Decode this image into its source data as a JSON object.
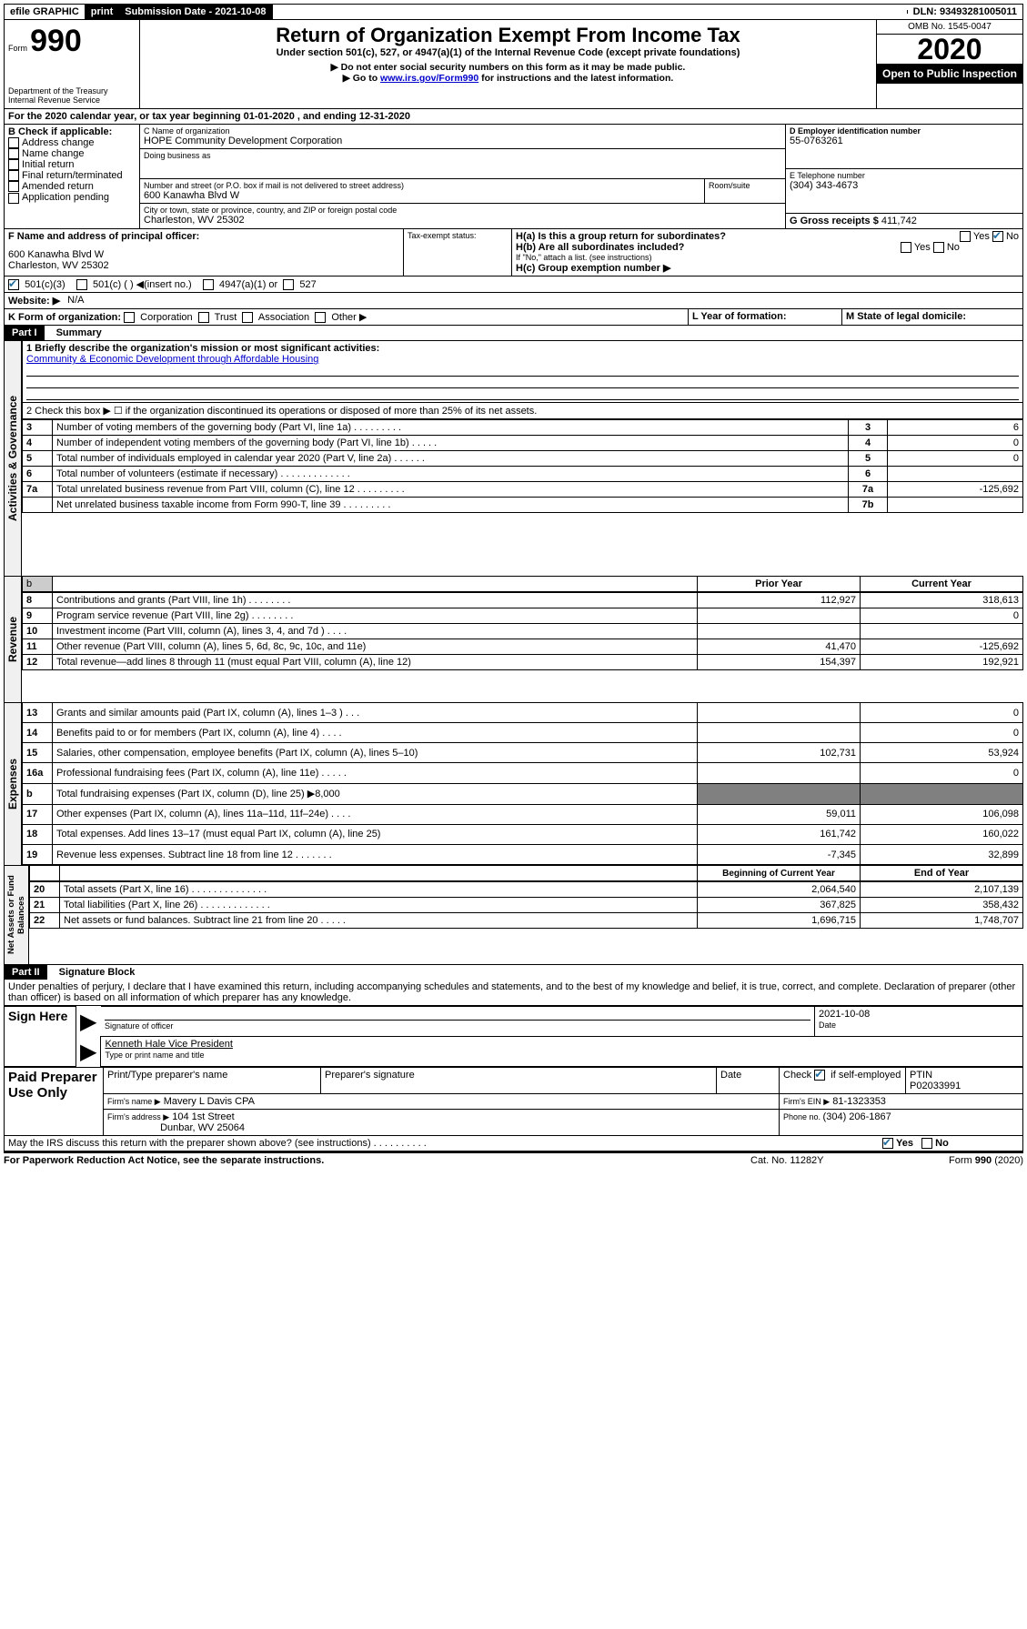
{
  "top_bar": {
    "efile": "efile GRAPHIC",
    "print": "print",
    "sub_date_label": "Submission Date - 2021-10-08",
    "dln": "DLN: 93493281005011"
  },
  "header": {
    "form_word": "Form",
    "form_num": "990",
    "title": "Return of Organization Exempt From Income Tax",
    "subtitle": "Under section 501(c), 527, or 4947(a)(1) of the Internal Revenue Code (except private foundations)",
    "note1": "▶ Do not enter social security numbers on this form as it may be made public.",
    "note2_pre": "▶ Go to ",
    "note2_link": "www.irs.gov/Form990",
    "note2_post": " for instructions and the latest information.",
    "dept1": "Department of the Treasury",
    "dept2": "Internal Revenue Service",
    "omb": "OMB No. 1545-0047",
    "year": "2020",
    "open": "Open to Public Inspection"
  },
  "line_a": "For the 2020 calendar year, or tax year beginning 01-01-2020    , and ending 12-31-2020",
  "box_b": {
    "label": "B Check if applicable:",
    "opts": [
      "Address change",
      "Name change",
      "Initial return",
      "Final return/terminated",
      "Amended return",
      "Application pending"
    ]
  },
  "box_c": {
    "label": "C Name of organization",
    "name": "HOPE Community Development Corporation",
    "dba_label": "Doing business as",
    "addr_label": "Number and street (or P.O. box if mail is not delivered to street address)",
    "room": "Room/suite",
    "addr": "600 Kanawha Blvd W",
    "city_label": "City or town, state or province, country, and ZIP or foreign postal code",
    "city": "Charleston, WV  25302"
  },
  "box_d": {
    "label": "D Employer identification number",
    "ein": "55-0763261"
  },
  "box_e": {
    "label": "E Telephone number",
    "phone": "(304) 343-4673"
  },
  "box_g": {
    "label": "G Gross receipts $ ",
    "val": "411,742"
  },
  "box_f": {
    "label": "F Name and address of principal officer:",
    "addr1": "600 Kanawha Blvd W",
    "addr2": "Charleston, WV  25302"
  },
  "box_h": {
    "a": "H(a)  Is this a group return for subordinates?",
    "b": "H(b)  Are all subordinates included?",
    "note": "If \"No,\" attach a list. (see instructions)",
    "c": "H(c)  Group exemption number ▶"
  },
  "tax_status": {
    "label": "Tax-exempt status:",
    "o1": "501(c)(3)",
    "o2": "501(c) (   ) ◀(insert no.)",
    "o3": "4947(a)(1) or",
    "o4": "527"
  },
  "line_j": {
    "label": "Website: ▶",
    "val": "N/A"
  },
  "line_k": "K Form of organization:",
  "k_opts": [
    "Corporation",
    "Trust",
    "Association",
    "Other ▶"
  ],
  "line_l": "L Year of formation:",
  "line_m": "M State of legal domicile:",
  "part1": {
    "hdr": "Part I",
    "title": "Summary",
    "q1": "1  Briefly describe the organization's mission or most significant activities:",
    "q1_ans": "Community & Economic Development through Affordable Housing",
    "q2": "2   Check this box ▶ ☐  if the organization discontinued its operations or disposed of more than 25% of its net assets.",
    "rows_gov": [
      {
        "n": "3",
        "t": "Number of voting members of the governing body (Part VI, line 1a)  .   .   .   .   .   .   .   .   .",
        "k": "3",
        "v": "6"
      },
      {
        "n": "4",
        "t": "Number of independent voting members of the governing body (Part VI, line 1b)  .   .   .   .   .",
        "k": "4",
        "v": "0"
      },
      {
        "n": "5",
        "t": "Total number of individuals employed in calendar year 2020 (Part V, line 2a)  .   .   .   .   .   .",
        "k": "5",
        "v": "0"
      },
      {
        "n": "6",
        "t": "Total number of volunteers (estimate if necessary)  .   .   .   .   .   .   .   .   .   .   .   .   .",
        "k": "6",
        "v": ""
      },
      {
        "n": "7a",
        "t": "Total unrelated business revenue from Part VIII, column (C), line 12  .   .   .   .   .   .   .   .   .",
        "k": "7a",
        "v": "-125,692"
      },
      {
        "n": "",
        "t": "Net unrelated business taxable income from Form 990-T, line 39  .   .   .   .   .   .   .   .   .",
        "k": "7b",
        "v": ""
      }
    ],
    "col_prior": "Prior Year",
    "col_curr": "Current Year",
    "rev": [
      {
        "n": "8",
        "t": "Contributions and grants (Part VIII, line 1h)  .   .   .   .   .   .   .   .",
        "p": "112,927",
        "c": "318,613"
      },
      {
        "n": "9",
        "t": "Program service revenue (Part VIII, line 2g)  .   .   .   .   .   .   .   .",
        "p": "",
        "c": "0"
      },
      {
        "n": "10",
        "t": "Investment income (Part VIII, column (A), lines 3, 4, and 7d )  .   .   .   .",
        "p": "",
        "c": ""
      },
      {
        "n": "11",
        "t": "Other revenue (Part VIII, column (A), lines 5, 6d, 8c, 9c, 10c, and 11e)",
        "p": "41,470",
        "c": "-125,692"
      },
      {
        "n": "12",
        "t": "Total revenue—add lines 8 through 11 (must equal Part VIII, column (A), line 12)",
        "p": "154,397",
        "c": "192,921"
      }
    ],
    "exp": [
      {
        "n": "13",
        "t": "Grants and similar amounts paid (Part IX, column (A), lines 1–3 )  .   .   .",
        "p": "",
        "c": "0"
      },
      {
        "n": "14",
        "t": "Benefits paid to or for members (Part IX, column (A), line 4)  .   .   .   .",
        "p": "",
        "c": "0"
      },
      {
        "n": "15",
        "t": "Salaries, other compensation, employee benefits (Part IX, column (A), lines 5–10)",
        "p": "102,731",
        "c": "53,924"
      },
      {
        "n": "16a",
        "t": "Professional fundraising fees (Part IX, column (A), line 11e)  .   .   .   .   .",
        "p": "",
        "c": "0"
      },
      {
        "n": "b",
        "t": "Total fundraising expenses (Part IX, column (D), line 25) ▶8,000",
        "p": "—",
        "c": "—"
      },
      {
        "n": "17",
        "t": "Other expenses (Part IX, column (A), lines 11a–11d, 11f–24e)  .   .   .   .",
        "p": "59,011",
        "c": "106,098"
      },
      {
        "n": "18",
        "t": "Total expenses. Add lines 13–17 (must equal Part IX, column (A), line 25)",
        "p": "161,742",
        "c": "160,022"
      },
      {
        "n": "19",
        "t": "Revenue less expenses. Subtract line 18 from line 12  .   .   .   .   .   .   .",
        "p": "-7,345",
        "c": "32,899"
      }
    ],
    "col_begin": "Beginning of Current Year",
    "col_end": "End of Year",
    "net": [
      {
        "n": "20",
        "t": "Total assets (Part X, line 16)  .   .   .   .   .   .   .   .   .   .   .   .   .   .",
        "p": "2,064,540",
        "c": "2,107,139"
      },
      {
        "n": "21",
        "t": "Total liabilities (Part X, line 26)  .   .   .   .   .   .   .   .   .   .   .   .   .",
        "p": "367,825",
        "c": "358,432"
      },
      {
        "n": "22",
        "t": "Net assets or fund balances. Subtract line 21 from line 20  .   .   .   .   .",
        "p": "1,696,715",
        "c": "1,748,707"
      }
    ]
  },
  "vert": {
    "gov": "Activities & Governance",
    "rev": "Revenue",
    "exp": "Expenses",
    "net": "Net Assets or Fund Balances"
  },
  "part2": {
    "hdr": "Part II",
    "title": "Signature Block",
    "decl": "Under penalties of perjury, I declare that I have examined this return, including accompanying schedules and statements, and to the best of my knowledge and belief, it is true, correct, and complete. Declaration of preparer (other than officer) is based on all information of which preparer has any knowledge.",
    "sign_here": "Sign Here",
    "sig_officer": "Signature of officer",
    "sig_date": "2021-10-08",
    "date_lbl": "Date",
    "name_title": "Kenneth Hale  Vice President",
    "type_name": "Type or print name and title",
    "paid": "Paid Preparer Use Only",
    "prep_name_lbl": "Print/Type preparer's name",
    "prep_sig_lbl": "Preparer's signature",
    "check_self": "Check ☑ if self-employed",
    "ptin_lbl": "PTIN",
    "ptin": "P02033991",
    "firm_name_lbl": "Firm's name    ▶",
    "firm_name": "Mavery L Davis CPA",
    "firm_ein_lbl": "Firm's EIN ▶",
    "firm_ein": "81-1323353",
    "firm_addr_lbl": "Firm's address ▶",
    "firm_addr1": "104 1st Street",
    "firm_addr2": "Dunbar, WV  25064",
    "phone_lbl": "Phone no. ",
    "phone": "(304) 206-1867",
    "discuss": "May the IRS discuss this return with the preparer shown above? (see instructions)  .   .   .   .   .   .   .   .   .   .",
    "yes": "Yes",
    "no": "No"
  },
  "footer": {
    "pra": "For Paperwork Reduction Act Notice, see the separate instructions.",
    "cat": "Cat. No. 11282Y",
    "form": "Form 990 (2020)"
  },
  "colors": {
    "accent": "#236fa1"
  }
}
